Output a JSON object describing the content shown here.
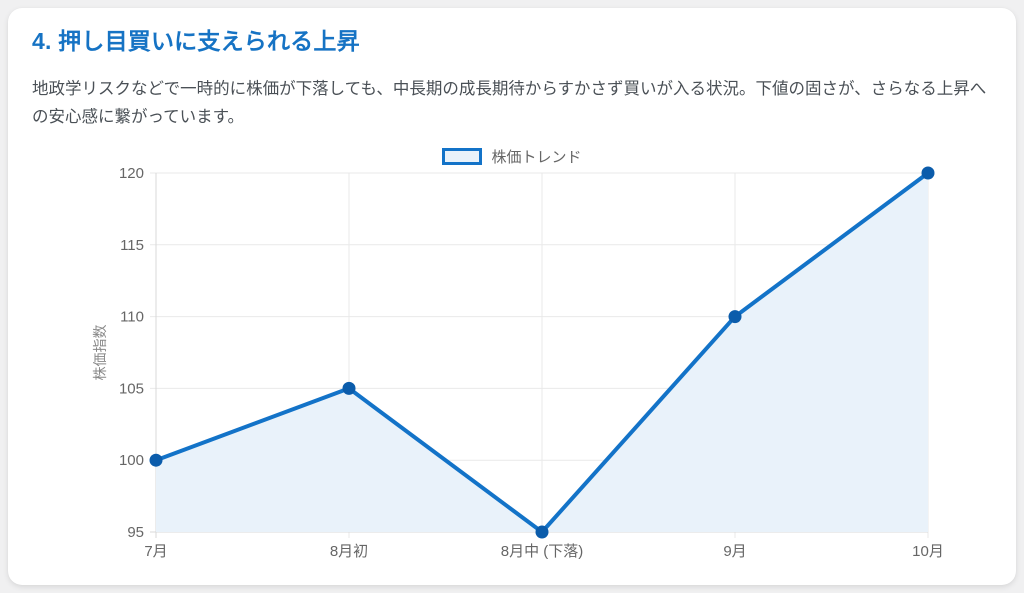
{
  "page": {
    "heading": "4. 押し目買いに支えられる上昇",
    "paragraph": "地政学リスクなどで一時的に株価が下落しても、中長期の成長期待からすかさず買いが入る状況。下値の固さが、さらなる上昇への安心感に繋がっています。"
  },
  "colors": {
    "heading": "#1673c4",
    "body_text": "#4a5056",
    "line": "#1373c8",
    "point": "#0b5cab",
    "fill": "#e9f2fa",
    "grid": "#e9e9e9",
    "axis": "#d9d9d9",
    "tick_text": "#666666",
    "axis_title": "#888888"
  },
  "chart_data": {
    "type": "line",
    "title": "",
    "categories": [
      "7月",
      "8月初",
      "8月中 (下落)",
      "9月",
      "10月"
    ],
    "series": [
      {
        "name": "株価トレンド",
        "values": [
          100,
          105,
          95,
          110,
          120
        ]
      }
    ],
    "xlabel": "",
    "ylabel": "株価指数",
    "ylim": [
      95,
      120
    ],
    "ytick_step": 5,
    "yticks": [
      95,
      100,
      105,
      110,
      115,
      120
    ],
    "grid": true,
    "area_fill": true,
    "legend_position": "top"
  }
}
